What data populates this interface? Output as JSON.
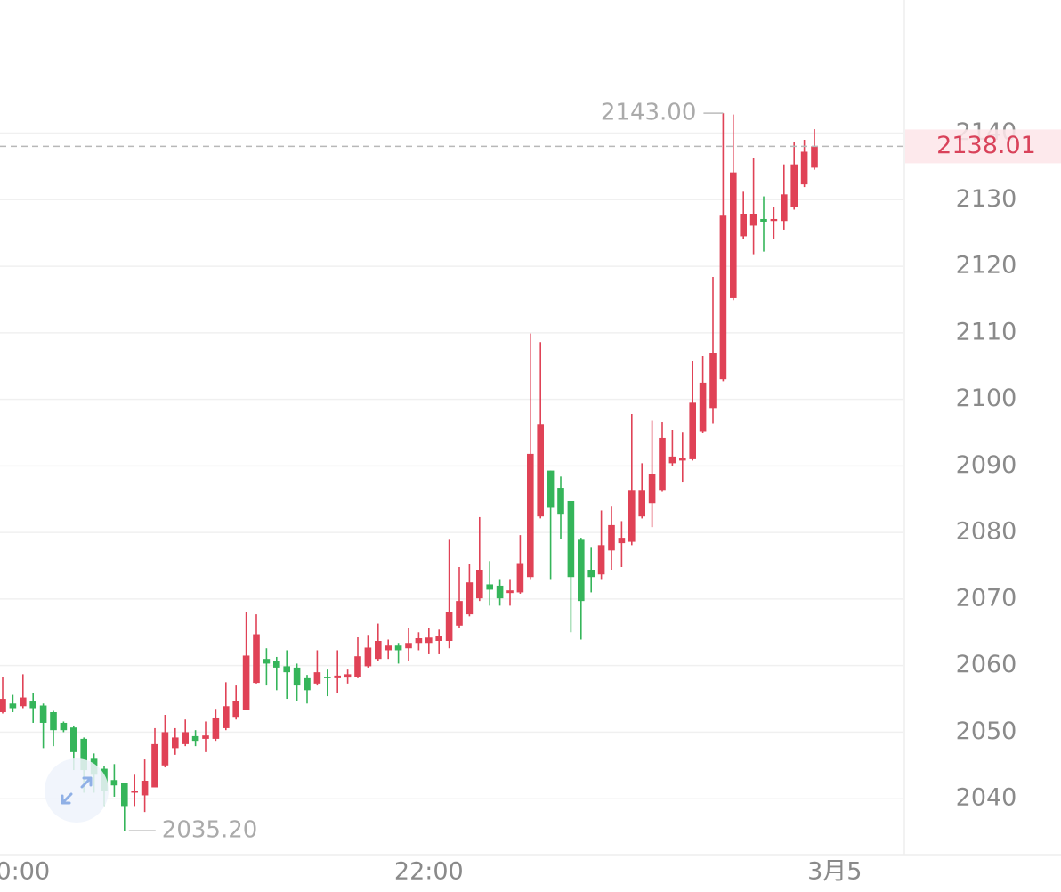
{
  "chart_data": {
    "type": "candlestick",
    "categories": [
      null,
      null,
      "0:00",
      null,
      null,
      null,
      null,
      null,
      null,
      null,
      null,
      null,
      null,
      null,
      null,
      null,
      null,
      null,
      null,
      null,
      null,
      null,
      null,
      null,
      null,
      null,
      null,
      null,
      null,
      null,
      null,
      null,
      null,
      null,
      null,
      null,
      null,
      null,
      null,
      null,
      null,
      null,
      "22:00",
      null,
      null,
      null,
      null,
      null,
      null,
      null,
      null,
      null,
      null,
      null,
      null,
      null,
      null,
      null,
      null,
      null,
      null,
      null,
      null,
      null,
      null,
      null,
      null,
      null,
      null,
      null,
      null,
      null,
      null,
      null,
      null,
      null,
      null,
      null,
      null,
      null,
      null,
      null,
      "3月5"
    ],
    "open": [
      2053.0,
      2054.3,
      2053.9,
      2054.6,
      2054.0,
      2053.0,
      2051.4,
      2050.7,
      2049.0,
      2046.0,
      2044.5,
      2042.8,
      2042.3,
      2040.9,
      2040.5,
      2041.7,
      2045.0,
      2047.6,
      2048.2,
      2049.4,
      2049.0,
      2049.0,
      2050.6,
      2052.3,
      2053.4,
      2057.4,
      2061.0,
      2060.7,
      2059.9,
      2059.7,
      2058.1,
      2057.3,
      2058.3,
      2058.1,
      2058.2,
      2058.3,
      2059.9,
      2061.0,
      2062.3,
      2063.0,
      2062.6,
      2063.4,
      2063.4,
      2063.7,
      2063.7,
      2066.0,
      2067.7,
      2070.1,
      2072.2,
      2072.0,
      2070.9,
      2071.0,
      2073.3,
      2082.4,
      2089.3,
      2086.7,
      2084.7,
      2078.9,
      2074.4,
      2073.7,
      2077.3,
      2078.4,
      2078.6,
      2082.4,
      2084.4,
      2086.4,
      2090.4,
      2090.8,
      2091.0,
      2095.2,
      2098.7,
      2103.0,
      2115.2,
      2124.5,
      2126.1,
      2127.1,
      2126.8,
      2126.8,
      2128.9,
      2132.3,
      2134.8,
      null,
      null
    ],
    "high": [
      2058.3,
      2055.6,
      2058.7,
      2055.9,
      2054.3,
      2053.2,
      2051.6,
      2051.0,
      2049.2,
      2046.8,
      2044.9,
      2045.2,
      2042.3,
      2043.6,
      2045.9,
      2050.6,
      2052.6,
      2050.6,
      2051.9,
      2050.3,
      2051.6,
      2053.5,
      2057.5,
      2057.0,
      2068.0,
      2067.7,
      2062.6,
      2061.3,
      2062.3,
      2060.3,
      2058.6,
      2062.3,
      2059.4,
      2062.3,
      2059.4,
      2064.3,
      2064.6,
      2066.3,
      2063.9,
      2063.4,
      2065.7,
      2065.0,
      2065.7,
      2065.4,
      2078.9,
      2074.8,
      2075.3,
      2082.3,
      2075.7,
      2073.0,
      2073.0,
      2079.6,
      2109.9,
      2108.6,
      2089.3,
      2088.4,
      2084.7,
      2079.2,
      2077.7,
      2083.3,
      2084.0,
      2081.7,
      2097.8,
      2090.4,
      2096.8,
      2096.6,
      2095.4,
      2095.1,
      2105.8,
      2106.5,
      2118.4,
      2143.0,
      2142.8,
      2131.2,
      2136.3,
      2130.5,
      2128.9,
      2135.3,
      2138.6,
      2139.0,
      2140.6,
      null,
      null
    ],
    "low": [
      2052.8,
      2053.0,
      2053.6,
      2051.4,
      2047.6,
      2047.9,
      2050.0,
      2044.3,
      2040.9,
      2040.9,
      2038.9,
      2040.3,
      2035.2,
      2038.9,
      2038.0,
      2041.7,
      2044.7,
      2046.6,
      2047.9,
      2047.9,
      2047.0,
      2048.7,
      2050.3,
      2051.9,
      2053.4,
      2057.3,
      2057.0,
      2056.3,
      2055.0,
      2054.7,
      2054.3,
      2057.0,
      2055.4,
      2055.9,
      2057.3,
      2058.1,
      2059.7,
      2060.7,
      2061.0,
      2060.3,
      2060.7,
      2062.3,
      2061.7,
      2061.7,
      2062.6,
      2065.7,
      2067.4,
      2069.7,
      2069.0,
      2069.0,
      2069.0,
      2070.8,
      2073.0,
      2082.1,
      2073.0,
      2079.0,
      2065.0,
      2063.9,
      2071.0,
      2073.0,
      2074.4,
      2074.8,
      2078.1,
      2082.1,
      2080.8,
      2086.1,
      2090.0,
      2087.5,
      2090.8,
      2095.0,
      2096.4,
      2102.7,
      2114.9,
      2124.1,
      2121.8,
      2122.2,
      2124.1,
      2125.5,
      2128.5,
      2131.9,
      2134.5,
      null,
      null
    ],
    "close": [
      2055.0,
      2053.6,
      2055.2,
      2053.6,
      2051.4,
      2050.3,
      2050.3,
      2047.0,
      2044.3,
      2043.6,
      2041.2,
      2042.0,
      2038.9,
      2041.2,
      2042.7,
      2048.2,
      2050.0,
      2049.2,
      2050.0,
      2048.7,
      2049.5,
      2052.2,
      2053.9,
      2054.7,
      2061.5,
      2064.7,
      2060.3,
      2059.7,
      2059.0,
      2057.0,
      2056.3,
      2059.0,
      2058.1,
      2058.5,
      2058.7,
      2061.4,
      2062.7,
      2063.7,
      2063.0,
      2062.3,
      2063.4,
      2064.1,
      2064.2,
      2064.5,
      2068.1,
      2069.7,
      2072.5,
      2074.4,
      2071.4,
      2070.1,
      2071.3,
      2075.4,
      2091.8,
      2096.3,
      2083.7,
      2082.8,
      2073.3,
      2069.7,
      2073.3,
      2078.1,
      2081.1,
      2079.2,
      2086.4,
      2086.4,
      2088.8,
      2094.2,
      2091.4,
      2091.2,
      2099.5,
      2102.5,
      2107.0,
      2127.6,
      2134.1,
      2127.9,
      2127.9,
      2126.7,
      2127.1,
      2130.8,
      2135.3,
      2137.2,
      2138.01,
      null,
      null
    ],
    "up_color": "#e04256",
    "down_color": "#35b55a",
    "ylim": [
      2031.6,
      2160.0
    ],
    "yticks": [
      2040,
      2050,
      2060,
      2070,
      2080,
      2090,
      2100,
      2110,
      2120,
      2130,
      2140
    ],
    "grid": true,
    "last_price": 2138.01,
    "max_marker": {
      "index": 71,
      "value": 2143.0,
      "label": "2143.00"
    },
    "min_marker": {
      "index": 12,
      "value": 2035.2,
      "label": "2035.20"
    }
  }
}
